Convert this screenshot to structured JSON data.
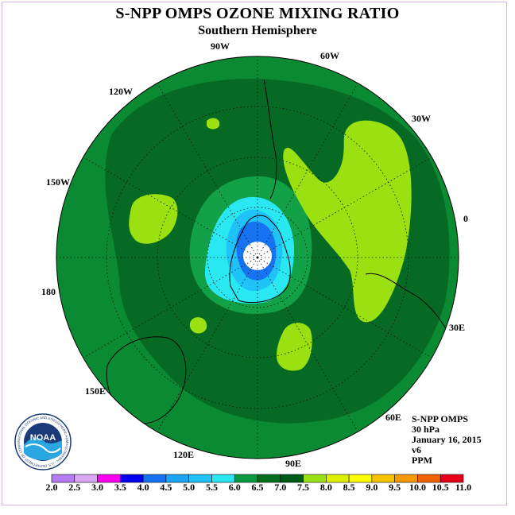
{
  "title": "S-NPP OMPS OZONE MIXING RATIO",
  "subtitle": "Southern Hemisphere",
  "longitude_labels": {
    "lon_90w": "90W",
    "lon_60w": "60W",
    "lon_120w": "120W",
    "lon_30w": "30W",
    "lon_150w": "150W",
    "lon_0": "0",
    "lon_180": "180",
    "lon_30e": "30E",
    "lon_150e": "150E",
    "lon_60e": "60E",
    "lon_120e": "120E",
    "lon_90e": "90E"
  },
  "info": {
    "instrument": "S-NPP OMPS",
    "level": "30 hPa",
    "date": "January 16, 2015",
    "version": "v6",
    "units": "PPM"
  },
  "logo": {
    "text": "NOAA",
    "ring_text": "NATIONAL OCEANIC AND ATMOSPHERIC ADMINISTRATION · U.S. DEPARTMENT OF COMMERCE"
  },
  "colorbar": {
    "ticks": [
      "2.0",
      "2.5",
      "3.0",
      "3.5",
      "4.0",
      "4.5",
      "5.0",
      "5.5",
      "6.0",
      "6.5",
      "7.0",
      "7.5",
      "8.0",
      "8.5",
      "9.0",
      "9.5",
      "10.0",
      "10.5",
      "11.0"
    ],
    "colors": [
      "#b57ef0",
      "#d9a8f5",
      "#ff00f0",
      "#0000ee",
      "#1673f2",
      "#1aa6f5",
      "#1fc3f7",
      "#2ae8f2",
      "#0a9940",
      "#00701f",
      "#005a17",
      "#9be010",
      "#dcf000",
      "#ffff00",
      "#f7c400",
      "#f59a00",
      "#f26300",
      "#e8001a",
      "#8c5a3c"
    ]
  },
  "map_colors": {
    "base": "#0a8a32",
    "dark": "#066a24",
    "light_green": "#9be010",
    "mid_green": "#12a146",
    "cyan": "#2ae8f2",
    "light_blue": "#1fc3f7",
    "blue": "#1673f2"
  }
}
